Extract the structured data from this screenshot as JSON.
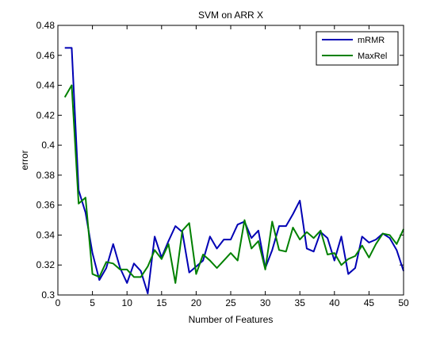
{
  "chart_data": {
    "type": "line",
    "title": "SVM on ARR X",
    "xlabel": "Number of Features",
    "ylabel": "error",
    "xlim": [
      0,
      50
    ],
    "ylim": [
      0.3,
      0.48
    ],
    "xticks": [
      "0",
      "5",
      "10",
      "15",
      "20",
      "25",
      "30",
      "35",
      "40",
      "45",
      "50"
    ],
    "yticks": [
      "0.3",
      "0.32",
      "0.34",
      "0.36",
      "0.38",
      "0.4",
      "0.42",
      "0.44",
      "0.46",
      "0.48"
    ],
    "grid": false,
    "legend_position": "top-right",
    "x": [
      1,
      2,
      3,
      4,
      5,
      6,
      7,
      8,
      9,
      10,
      11,
      12,
      13,
      14,
      15,
      16,
      17,
      18,
      19,
      20,
      21,
      22,
      23,
      24,
      25,
      26,
      27,
      28,
      29,
      30,
      31,
      32,
      33,
      34,
      35,
      36,
      37,
      38,
      39,
      40,
      41,
      42,
      43,
      44,
      45,
      46,
      47,
      48,
      49,
      50
    ],
    "series": [
      {
        "name": "mRMR",
        "color": "#0000b4",
        "values": [
          0.465,
          0.465,
          0.37,
          0.355,
          0.328,
          0.31,
          0.318,
          0.334,
          0.318,
          0.308,
          0.321,
          0.316,
          0.301,
          0.339,
          0.325,
          0.336,
          0.346,
          0.342,
          0.315,
          0.319,
          0.323,
          0.339,
          0.331,
          0.337,
          0.337,
          0.347,
          0.349,
          0.338,
          0.343,
          0.318,
          0.33,
          0.346,
          0.346,
          0.354,
          0.363,
          0.331,
          0.329,
          0.342,
          0.338,
          0.323,
          0.339,
          0.314,
          0.318,
          0.339,
          0.335,
          0.337,
          0.341,
          0.338,
          0.33,
          0.316
        ]
      },
      {
        "name": "MaxRel",
        "color": "#008000",
        "values": [
          0.432,
          0.44,
          0.361,
          0.365,
          0.314,
          0.312,
          0.322,
          0.321,
          0.317,
          0.317,
          0.312,
          0.312,
          0.319,
          0.33,
          0.324,
          0.334,
          0.308,
          0.343,
          0.348,
          0.314,
          0.327,
          0.323,
          0.318,
          0.323,
          0.328,
          0.323,
          0.35,
          0.331,
          0.336,
          0.317,
          0.349,
          0.33,
          0.329,
          0.345,
          0.337,
          0.342,
          0.338,
          0.343,
          0.327,
          0.328,
          0.32,
          0.324,
          0.326,
          0.333,
          0.325,
          0.334,
          0.341,
          0.34,
          0.334,
          0.344
        ]
      }
    ]
  }
}
